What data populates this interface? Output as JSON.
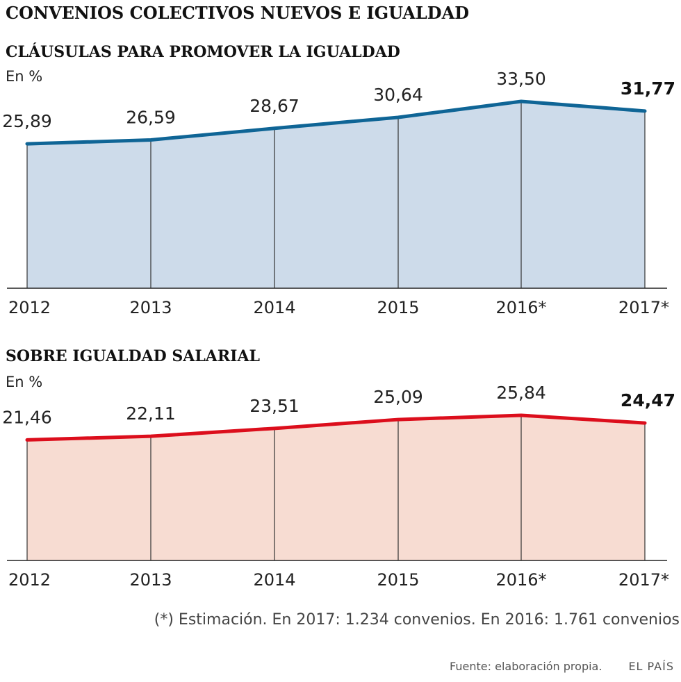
{
  "header": {
    "title": "CONVENIOS COLECTIVOS NUEVOS E IGUALDAD"
  },
  "chart_data": [
    {
      "type": "area",
      "title": "CLÁUSULAS PARA PROMOVER LA IGUALDAD",
      "unit": "En %",
      "categories": [
        "2012",
        "2013",
        "2014",
        "2015",
        "2016*",
        "2017*"
      ],
      "values": [
        25.89,
        26.59,
        28.67,
        30.64,
        33.5,
        31.77
      ],
      "labels": [
        "25,89",
        "26,59",
        "28,67",
        "30,64",
        "33,50",
        "31,77"
      ],
      "highlight_last": true,
      "line_color": "#0f6596",
      "fill_color": "#cddbea",
      "ylim": [
        0,
        33.5
      ]
    },
    {
      "type": "area",
      "title": "SOBRE IGUALDAD SALARIAL",
      "unit": "En %",
      "categories": [
        "2012",
        "2013",
        "2014",
        "2015",
        "2016*",
        "2017*"
      ],
      "values": [
        21.46,
        22.11,
        23.51,
        25.09,
        25.84,
        24.47
      ],
      "labels": [
        "21,46",
        "22,11",
        "23,51",
        "25,09",
        "25,84",
        "24,47"
      ],
      "highlight_last": true,
      "line_color": "#dc0e1c",
      "fill_color": "#f7dcd2",
      "ylim": [
        0,
        25.84
      ]
    }
  ],
  "note": "(*) Estimación. En 2017: 1.234 convenios. En 2016: 1.761 convenios",
  "footer": {
    "source": "Fuente: elaboración propia.",
    "brand": "EL PAÍS"
  }
}
